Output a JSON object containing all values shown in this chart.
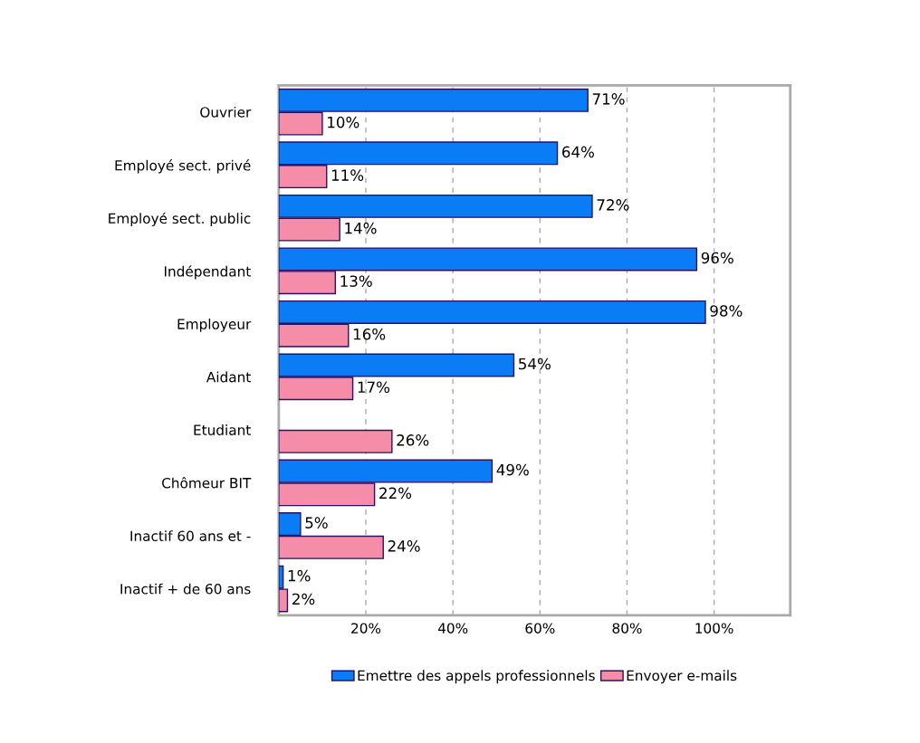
{
  "chart_data": {
    "type": "bar",
    "orientation": "horizontal",
    "categories": [
      "Ouvrier",
      "Employé sect. privé",
      "Employé sect. public",
      "Indépendant",
      "Employeur",
      "Aidant",
      "Etudiant",
      "Chômeur BIT",
      "Inactif 60 ans et -",
      "Inactif + de 60 ans"
    ],
    "series": [
      {
        "name": "Emettre des appels professionnels",
        "color": "#0a7cf5",
        "values": [
          71,
          64,
          72,
          96,
          98,
          54,
          null,
          49,
          5,
          1
        ],
        "value_labels": [
          "71%",
          "64%",
          "72%",
          "96%",
          "98%",
          "54%",
          null,
          "49%",
          "5%",
          "1%"
        ]
      },
      {
        "name": "Envoyer e-mails",
        "color": "#f58ca8",
        "values": [
          10,
          11,
          14,
          13,
          16,
          17,
          26,
          22,
          24,
          2
        ],
        "value_labels": [
          "10%",
          "11%",
          "14%",
          "13%",
          "16%",
          "17%",
          "26%",
          "22%",
          "24%",
          "2%"
        ]
      }
    ],
    "xlim": [
      0,
      117.5
    ],
    "xticks": [
      {
        "value": 20,
        "label": "20%"
      },
      {
        "value": 40,
        "label": "40%"
      },
      {
        "value": 60,
        "label": "60%"
      },
      {
        "value": 80,
        "label": "80%"
      },
      {
        "value": 100,
        "label": "100%"
      }
    ],
    "grid": "x",
    "legend": "bottom"
  }
}
